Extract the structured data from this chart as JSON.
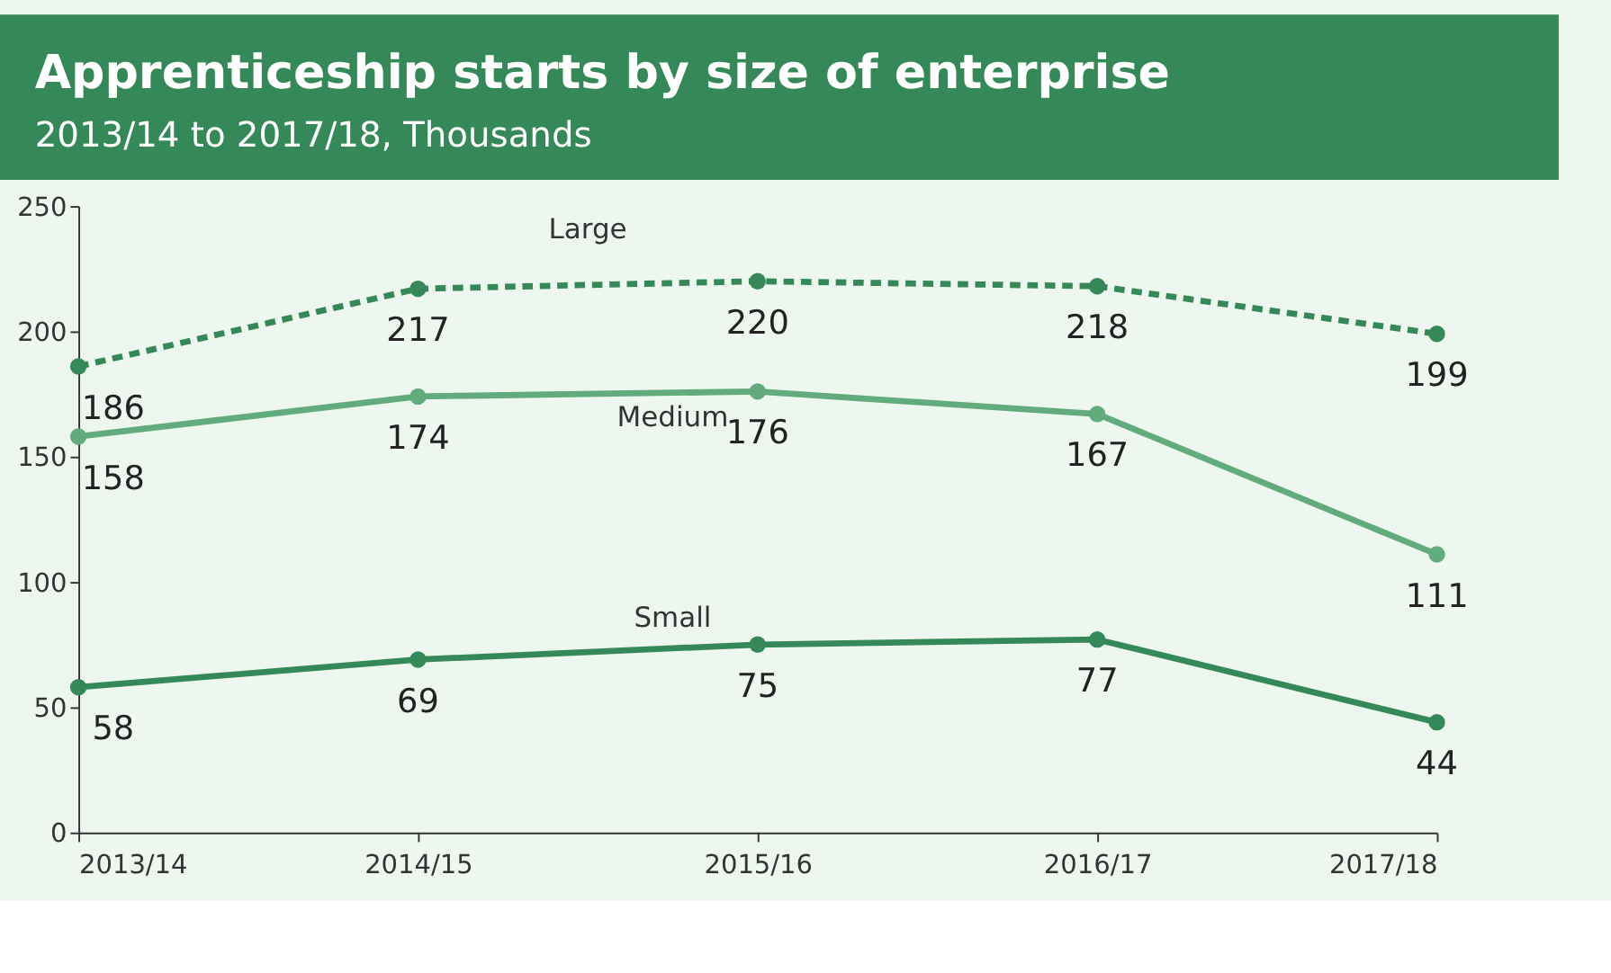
{
  "chart_data": {
    "type": "line",
    "title": "Apprenticeship starts by size of enterprise",
    "subtitle": "2013/14 to 2017/18, Thousands",
    "categories": [
      "2013/14",
      "2014/15",
      "2015/16",
      "2016/17",
      "2017/18"
    ],
    "series": [
      {
        "name": "Large",
        "color": "#358858",
        "line_style": "dashed",
        "values": [
          186,
          217,
          220,
          218,
          199
        ]
      },
      {
        "name": "Medium",
        "color": "#62ab7c",
        "line_style": "solid",
        "values": [
          158,
          174,
          176,
          167,
          111
        ]
      },
      {
        "name": "Small",
        "color": "#358858",
        "line_style": "solid",
        "values": [
          58,
          69,
          75,
          77,
          44
        ]
      }
    ],
    "ylim": [
      0,
      250
    ],
    "yticks": [
      0,
      50,
      100,
      150,
      200,
      250
    ],
    "grid": false,
    "legend": false,
    "marker": "circle",
    "data_labels": true
  }
}
